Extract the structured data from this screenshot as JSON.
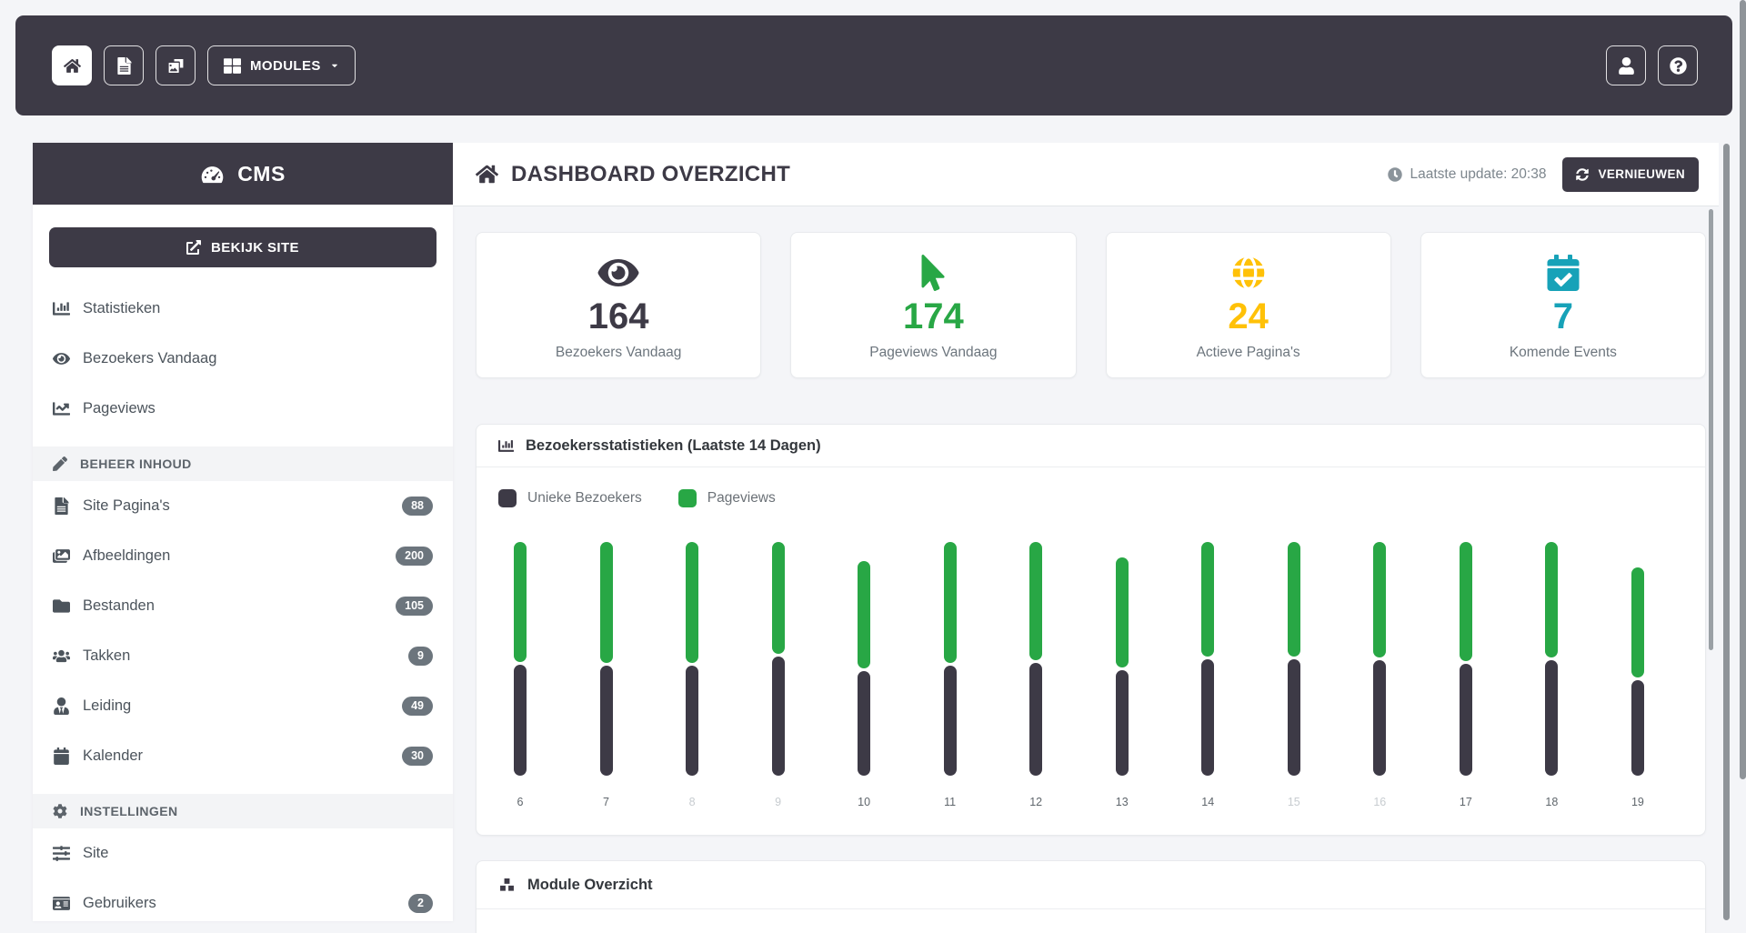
{
  "navbar": {
    "buttons": [
      {
        "name": "home",
        "icon": "home-icon",
        "active": true
      },
      {
        "name": "pages",
        "icon": "file-icon",
        "active": false
      },
      {
        "name": "media",
        "icon": "photo-video-icon",
        "active": false
      }
    ],
    "modules": {
      "label": "MODULES"
    },
    "right_buttons": [
      {
        "name": "user",
        "icon": "user-icon"
      },
      {
        "name": "help",
        "icon": "question-icon"
      }
    ]
  },
  "sidebar": {
    "brand": "CMS",
    "view_site_label": "BEKIJK SITE",
    "items": [
      {
        "type": "link",
        "label": "Statistieken",
        "icon": "chart-bar-icon"
      },
      {
        "type": "link",
        "label": "Bezoekers Vandaag",
        "icon": "eye-icon"
      },
      {
        "type": "link",
        "label": "Pageviews",
        "icon": "chart-line-icon"
      },
      {
        "type": "section",
        "label": "BEHEER INHOUD",
        "icon": "pencil-icon"
      },
      {
        "type": "link",
        "label": "Site Pagina's",
        "icon": "file-lines-icon",
        "badge": "88"
      },
      {
        "type": "link",
        "label": "Afbeeldingen",
        "icon": "images-icon",
        "badge": "200"
      },
      {
        "type": "link",
        "label": "Bestanden",
        "icon": "folder-icon",
        "badge": "105"
      },
      {
        "type": "link",
        "label": "Takken",
        "icon": "users-icon",
        "badge": "9"
      },
      {
        "type": "link",
        "label": "Leiding",
        "icon": "user-tie-icon",
        "badge": "49"
      },
      {
        "type": "link",
        "label": "Kalender",
        "icon": "calendar-icon",
        "badge": "30"
      },
      {
        "type": "section",
        "label": "INSTELLINGEN",
        "icon": "gear-icon"
      },
      {
        "type": "link",
        "label": "Site",
        "icon": "sliders-icon"
      },
      {
        "type": "link",
        "label": "Gebruikers",
        "icon": "id-card-icon",
        "badge": "2"
      }
    ]
  },
  "header": {
    "title": "DASHBOARD OVERZICHT",
    "last_update": "Laatste update: 20:38",
    "refresh_label": "VERNIEUWEN"
  },
  "stats": [
    {
      "value": "164",
      "label": "Bezoekers Vandaag",
      "icon": "eye-icon",
      "color": "#3d3a46"
    },
    {
      "value": "174",
      "label": "Pageviews Vandaag",
      "icon": "mouse-pointer-icon",
      "color": "#28a745"
    },
    {
      "value": "24",
      "label": "Actieve Pagina's",
      "icon": "globe-icon",
      "color": "#ffc107"
    },
    {
      "value": "7",
      "label": "Komende Events",
      "icon": "calendar-check-icon",
      "color": "#17a2b8"
    }
  ],
  "chart_data": {
    "type": "bar",
    "stacked": true,
    "title": "Bezoekersstatistieken (Laatste 14 Dagen)",
    "categories": [
      "6",
      "7",
      "8",
      "9",
      "10",
      "11",
      "12",
      "13",
      "14",
      "15",
      "16",
      "17",
      "18",
      "19"
    ],
    "series": [
      {
        "name": "Unieke Bezoekers",
        "color": "#3d3a46",
        "values": [
          122,
          121,
          121,
          131,
          115,
          121,
          124,
          116,
          128,
          128,
          127,
          123,
          127,
          105
        ]
      },
      {
        "name": "Pageviews",
        "color": "#28a745",
        "values": [
          132,
          133,
          133,
          123,
          118,
          133,
          130,
          121,
          126,
          126,
          127,
          131,
          127,
          121
        ]
      }
    ],
    "muted_categories": [
      "8",
      "9",
      "15",
      "16"
    ],
    "legend_position": "top-left",
    "grid": false,
    "value_note": "relative bar-segment heights (no numeric axis shown)"
  },
  "module_section": {
    "title": "Module Overzicht"
  },
  "colors": {
    "navbar": "#3d3a46",
    "green": "#28a745",
    "amber": "#ffc107",
    "teal": "#17a2b8",
    "badge": "#6c757d",
    "page_bg": "#f4f5f8"
  }
}
